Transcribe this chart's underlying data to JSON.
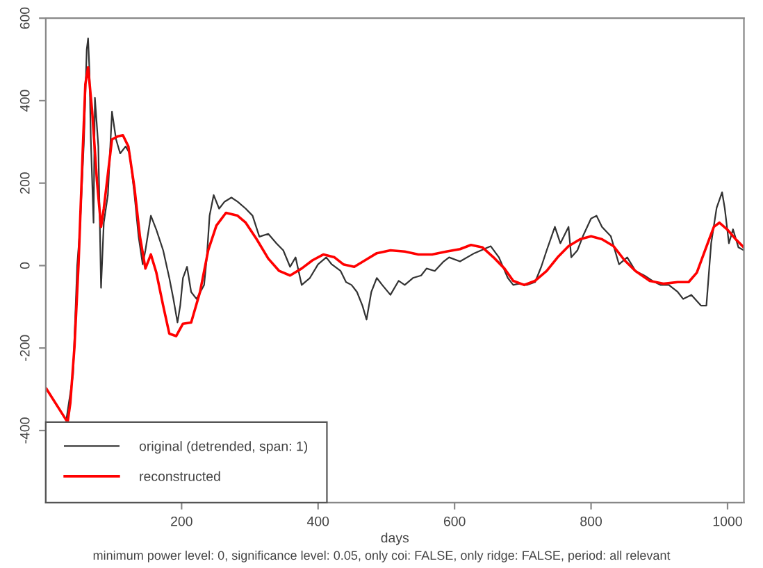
{
  "chart_data": {
    "type": "line",
    "xlabel": "days",
    "annotations": [
      "minimum power level: 0, significance level: 0.05, only coi: FALSE, only ridge: FALSE, period: all relevant"
    ],
    "series": [
      {
        "name": "original (detrended, span: 1)",
        "color": "#333333",
        "x": [
          31,
          41,
          47,
          51,
          57,
          61,
          63,
          65,
          67,
          71,
          73,
          78,
          82,
          86,
          92,
          98,
          104,
          110,
          118,
          124,
          131,
          137,
          143,
          147,
          155,
          163,
          173,
          182,
          188,
          194,
          198,
          202,
          208,
          214,
          222,
          233,
          237,
          241,
          247,
          255,
          263,
          273,
          282,
          294,
          304,
          314,
          327,
          339,
          349,
          359,
          367,
          376,
          388,
          400,
          412,
          420,
          433,
          441,
          449,
          457,
          465,
          471,
          478,
          486,
          494,
          506,
          518,
          527,
          539,
          551,
          559,
          571,
          584,
          592,
          608,
          629,
          653,
          665,
          678,
          686,
          694,
          706,
          718,
          727,
          735,
          747,
          755,
          767,
          771,
          780,
          788,
          800,
          808,
          816,
          829,
          841,
          853,
          865,
          878,
          890,
          902,
          914,
          927,
          935,
          947,
          961,
          969,
          976,
          984,
          992,
          996,
          1002,
          1008,
          1016,
          1024
        ],
        "values": [
          -375,
          -265,
          0,
          87,
          306,
          524,
          551,
          474,
          306,
          104,
          407,
          289,
          -54,
          104,
          171,
          373,
          306,
          272,
          289,
          272,
          171,
          70,
          3,
          37,
          121,
          87,
          37,
          -30,
          -81,
          -138,
          -97,
          -30,
          -3,
          -64,
          -81,
          -47,
          20,
          121,
          171,
          138,
          155,
          165,
          155,
          138,
          121,
          70,
          77,
          54,
          37,
          -3,
          20,
          -47,
          -30,
          3,
          20,
          3,
          -13,
          -40,
          -47,
          -64,
          -97,
          -131,
          -64,
          -30,
          -47,
          -71,
          -37,
          -47,
          -30,
          -24,
          -7,
          -13,
          10,
          20,
          10,
          30,
          47,
          20,
          -30,
          -47,
          -44,
          -47,
          -40,
          -3,
          37,
          94,
          54,
          94,
          20,
          37,
          71,
          114,
          121,
          94,
          71,
          3,
          20,
          -13,
          -24,
          -37,
          -47,
          -47,
          -64,
          -81,
          -71,
          -97,
          -97,
          54,
          140,
          178,
          138,
          54,
          88,
          44,
          37
        ]
      },
      {
        "name": "reconstructed",
        "color": "#ff0000",
        "x": [
          2,
          33,
          37,
          43,
          49,
          55,
          59,
          63,
          69,
          76,
          82,
          86,
          92,
          98,
          106,
          114,
          122,
          131,
          139,
          147,
          155,
          163,
          173,
          182,
          192,
          202,
          214,
          227,
          239,
          251,
          265,
          282,
          294,
          310,
          327,
          343,
          359,
          376,
          392,
          408,
          424,
          437,
          453,
          469,
          486,
          506,
          527,
          547,
          567,
          588,
          608,
          624,
          641,
          657,
          673,
          686,
          702,
          718,
          735,
          751,
          767,
          784,
          800,
          816,
          833,
          849,
          865,
          886,
          906,
          927,
          943,
          955,
          967,
          980,
          988,
          1000,
          1012,
          1024
        ],
        "values": [
          -299,
          -380,
          -333,
          -198,
          3,
          272,
          440,
          481,
          373,
          205,
          94,
          138,
          222,
          306,
          313,
          316,
          289,
          188,
          70,
          -7,
          27,
          -17,
          -97,
          -165,
          -171,
          -141,
          -138,
          -64,
          37,
          97,
          128,
          121,
          104,
          64,
          17,
          -13,
          -24,
          -7,
          13,
          27,
          20,
          3,
          -3,
          13,
          30,
          37,
          34,
          27,
          27,
          34,
          40,
          50,
          44,
          20,
          -7,
          -37,
          -47,
          -37,
          -13,
          20,
          47,
          64,
          71,
          64,
          47,
          13,
          -13,
          -37,
          -44,
          -40,
          -40,
          -17,
          37,
          94,
          104,
          87,
          64,
          44
        ]
      }
    ],
    "xlim": [
      1,
      1024
    ],
    "ylim": [
      -575,
      600
    ],
    "xticks": [
      200,
      400,
      600,
      800,
      1000
    ],
    "yticks": [
      -400,
      -200,
      0,
      200,
      400,
      600
    ],
    "legend": "bottom left",
    "grid": false
  }
}
